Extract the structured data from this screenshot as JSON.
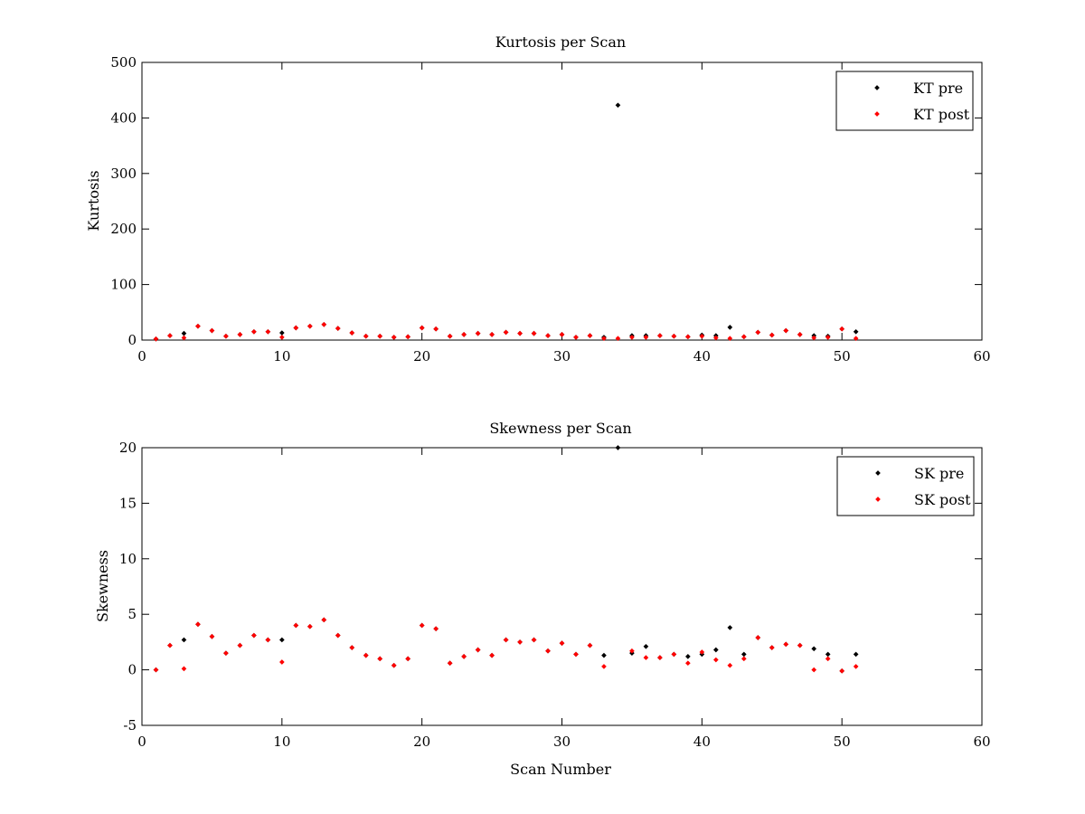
{
  "chart_data": [
    {
      "type": "scatter",
      "title": "Kurtosis per Scan",
      "xlabel": "",
      "ylabel": "Kurtosis",
      "xlim": [
        0,
        60
      ],
      "ylim": [
        0,
        500
      ],
      "xticks": [
        0,
        10,
        20,
        30,
        40,
        50,
        60
      ],
      "yticks": [
        0,
        100,
        200,
        300,
        400,
        500
      ],
      "grid": false,
      "legend_position": "top-right",
      "series": [
        {
          "name": "KT pre",
          "color": "#000000",
          "x": [
            1,
            2,
            3,
            4,
            5,
            6,
            7,
            8,
            9,
            10,
            11,
            12,
            13,
            14,
            15,
            16,
            17,
            18,
            19,
            20,
            21,
            22,
            23,
            24,
            25,
            26,
            27,
            28,
            29,
            30,
            31,
            32,
            33,
            34,
            35,
            36,
            37,
            38,
            39,
            40,
            41,
            42,
            43,
            44,
            45,
            46,
            47,
            48,
            49,
            50,
            51
          ],
          "y": [
            2,
            8,
            12,
            25,
            17,
            7,
            10,
            15,
            15,
            13,
            22,
            25,
            28,
            21,
            13,
            7,
            7,
            5,
            6,
            22,
            20,
            7,
            10,
            12,
            10,
            14,
            12,
            12,
            8,
            10,
            5,
            8,
            5,
            423,
            8,
            8,
            8,
            7,
            6,
            9,
            8,
            23,
            6,
            14,
            9,
            17,
            10,
            8,
            7,
            20,
            15
          ]
        },
        {
          "name": "KT post",
          "color": "#ff0000",
          "x": [
            1,
            2,
            3,
            4,
            5,
            6,
            7,
            8,
            9,
            10,
            11,
            12,
            13,
            14,
            15,
            16,
            17,
            18,
            19,
            20,
            21,
            22,
            23,
            24,
            25,
            26,
            27,
            28,
            29,
            30,
            31,
            32,
            33,
            34,
            35,
            36,
            37,
            38,
            39,
            40,
            41,
            42,
            43,
            44,
            45,
            46,
            47,
            48,
            49,
            50,
            51
          ],
          "y": [
            2,
            8,
            4,
            25,
            17,
            7,
            10,
            15,
            15,
            5,
            22,
            25,
            28,
            21,
            13,
            7,
            7,
            5,
            6,
            22,
            20,
            7,
            10,
            12,
            10,
            14,
            12,
            12,
            8,
            10,
            5,
            8,
            3,
            3,
            5,
            5,
            8,
            7,
            6,
            7,
            4,
            3,
            6,
            14,
            9,
            17,
            10,
            4,
            5,
            20,
            3
          ]
        }
      ]
    },
    {
      "type": "scatter",
      "title": "Skewness per Scan",
      "xlabel": "Scan Number",
      "ylabel": "Skewness",
      "xlim": [
        0,
        60
      ],
      "ylim": [
        -5,
        20
      ],
      "xticks": [
        0,
        10,
        20,
        30,
        40,
        50,
        60
      ],
      "yticks": [
        -5,
        0,
        5,
        10,
        15,
        20
      ],
      "grid": false,
      "legend_position": "top-right",
      "series": [
        {
          "name": "SK pre",
          "color": "#000000",
          "x": [
            1,
            2,
            3,
            4,
            5,
            6,
            7,
            8,
            9,
            10,
            11,
            12,
            13,
            14,
            15,
            16,
            17,
            18,
            19,
            20,
            21,
            22,
            23,
            24,
            25,
            26,
            27,
            28,
            29,
            30,
            31,
            32,
            33,
            34,
            35,
            36,
            37,
            38,
            39,
            40,
            41,
            42,
            43,
            44,
            45,
            46,
            47,
            48,
            49,
            50,
            51
          ],
          "y": [
            0,
            2.2,
            2.7,
            4.1,
            3.0,
            1.5,
            2.2,
            3.1,
            2.7,
            2.7,
            4.0,
            3.9,
            4.5,
            3.1,
            2.0,
            1.3,
            1.0,
            0.4,
            1.0,
            4.0,
            3.7,
            0.6,
            1.2,
            1.8,
            1.3,
            2.7,
            2.5,
            2.7,
            1.7,
            2.4,
            1.4,
            2.2,
            1.3,
            20,
            1.5,
            2.1,
            1.1,
            1.4,
            1.2,
            1.4,
            1.8,
            3.8,
            1.4,
            2.9,
            2.0,
            2.3,
            2.2,
            1.9,
            1.4,
            -0.1,
            1.4
          ]
        },
        {
          "name": "SK post",
          "color": "#ff0000",
          "x": [
            1,
            2,
            3,
            4,
            5,
            6,
            7,
            8,
            9,
            10,
            11,
            12,
            13,
            14,
            15,
            16,
            17,
            18,
            19,
            20,
            21,
            22,
            23,
            24,
            25,
            26,
            27,
            28,
            29,
            30,
            31,
            32,
            33,
            35,
            36,
            37,
            38,
            39,
            40,
            41,
            42,
            43,
            44,
            45,
            46,
            47,
            48,
            49,
            50,
            51
          ],
          "y": [
            0,
            2.2,
            0.1,
            4.1,
            3.0,
            1.5,
            2.2,
            3.1,
            2.7,
            0.7,
            4.0,
            3.9,
            4.5,
            3.1,
            2.0,
            1.3,
            1.0,
            0.4,
            1.0,
            4.0,
            3.7,
            0.6,
            1.2,
            1.8,
            1.3,
            2.7,
            2.5,
            2.7,
            1.7,
            2.4,
            1.4,
            2.2,
            0.3,
            1.7,
            1.1,
            1.1,
            1.4,
            0.6,
            1.6,
            0.9,
            0.4,
            1.0,
            2.9,
            2.0,
            2.3,
            2.2,
            0.0,
            1.0,
            -0.1,
            0.3
          ]
        }
      ]
    }
  ]
}
